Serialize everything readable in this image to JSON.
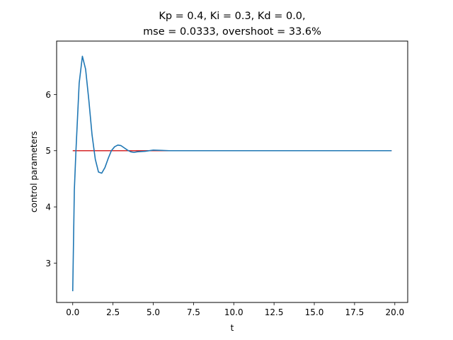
{
  "chart_data": {
    "type": "line",
    "title_line1": "Kp = 0.4, Ki = 0.3, Kd = 0.0,",
    "title_line2": "mse = 0.0333, overshoot = 33.6%",
    "xlabel": "t",
    "ylabel": "control parameters",
    "xlim": [
      -1.0,
      20.8
    ],
    "ylim": [
      2.3,
      6.95
    ],
    "xticks": [
      0.0,
      2.5,
      5.0,
      7.5,
      10.0,
      12.5,
      15.0,
      17.5,
      20.0
    ],
    "xtick_labels": [
      "0.0",
      "2.5",
      "5.0",
      "7.5",
      "10.0",
      "12.5",
      "15.0",
      "17.5",
      "20.0"
    ],
    "yticks": [
      3,
      4,
      5,
      6
    ],
    "ytick_labels": [
      "3",
      "4",
      "5",
      "6"
    ],
    "grid": false,
    "series": [
      {
        "color": "#d62728",
        "x": [
          0.0,
          19.8
        ],
        "y": [
          5.0,
          5.0
        ]
      },
      {
        "color": "#1f77b4",
        "x": [
          0.0,
          0.1,
          0.2,
          0.3,
          0.4,
          0.6,
          0.8,
          1.0,
          1.2,
          1.4,
          1.6,
          1.8,
          2.0,
          2.2,
          2.4,
          2.6,
          2.8,
          3.0,
          3.2,
          3.4,
          3.6,
          3.8,
          4.0,
          4.5,
          5.0,
          5.5,
          6.0,
          7.0,
          8.0,
          10.0,
          12.5,
          15.0,
          17.5,
          19.8
        ],
        "y": [
          2.5,
          4.3,
          5.0,
          5.6,
          6.2,
          6.68,
          6.45,
          5.9,
          5.28,
          4.85,
          4.62,
          4.6,
          4.7,
          4.86,
          5.0,
          5.07,
          5.1,
          5.09,
          5.05,
          5.01,
          4.98,
          4.97,
          4.98,
          4.99,
          5.01,
          5.005,
          5.0,
          5.0,
          5.0,
          5.0,
          5.0,
          5.0,
          5.0,
          5.0
        ]
      }
    ]
  }
}
